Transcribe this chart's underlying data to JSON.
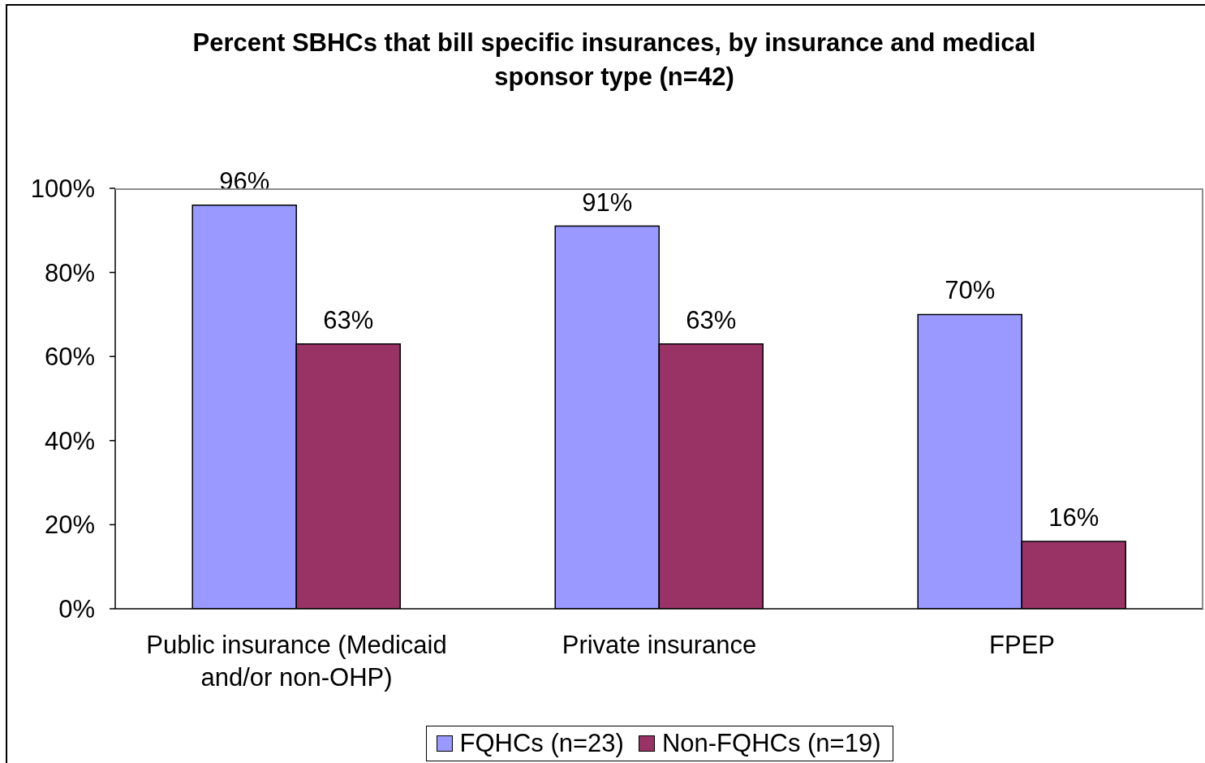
{
  "chart_data": {
    "type": "bar",
    "title": "Percent SBHCs that bill specific insurances, by insurance and medical sponsor type (n=42)",
    "categories": [
      "Public insurance (Medicaid and/or non-OHP)",
      "Private insurance",
      "FPEP"
    ],
    "series": [
      {
        "name": "FQHCs (n=23)",
        "color": "#9999ff",
        "values": [
          96,
          91,
          70
        ],
        "value_labels": [
          "96%",
          "91%",
          "70%"
        ]
      },
      {
        "name": "Non-FQHCs (n=19)",
        "color": "#993366",
        "values": [
          63,
          63,
          16
        ],
        "value_labels": [
          "63%",
          "63%",
          "16%"
        ]
      }
    ],
    "ylim": [
      0,
      100
    ],
    "yticks": [
      {
        "value": 0,
        "label": "0%"
      },
      {
        "value": 20,
        "label": "20%"
      },
      {
        "value": 40,
        "label": "40%"
      },
      {
        "value": 60,
        "label": "60%"
      },
      {
        "value": 80,
        "label": "80%"
      },
      {
        "value": 100,
        "label": "100%"
      }
    ],
    "legend": "bottom"
  }
}
